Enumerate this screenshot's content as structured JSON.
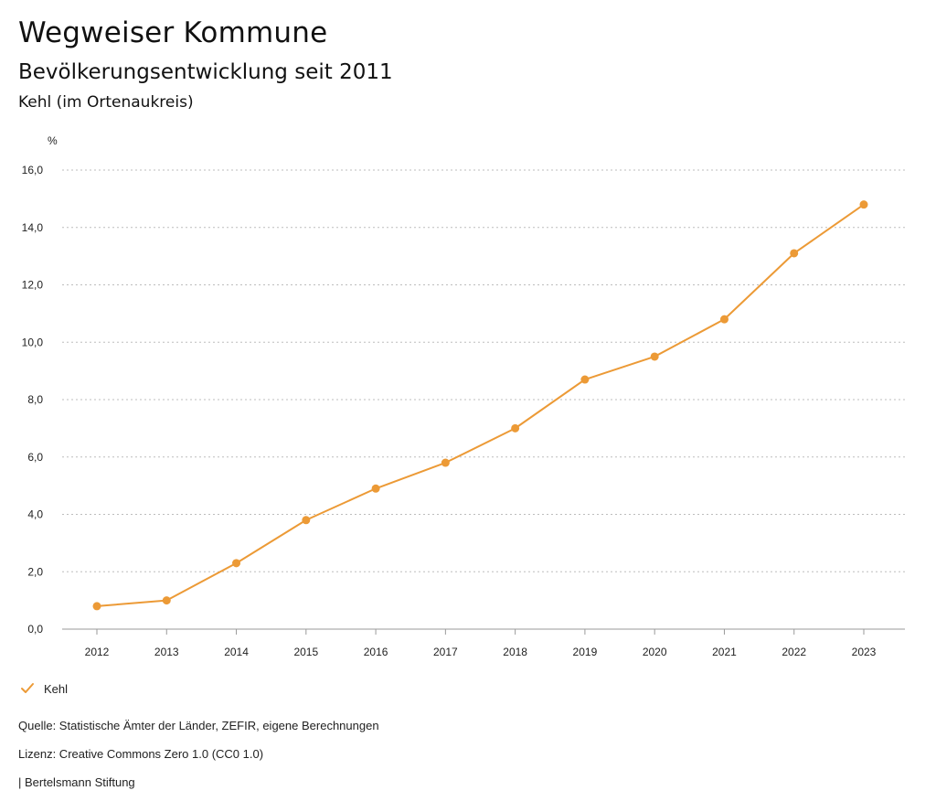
{
  "header": {
    "title": "Wegweiser Kommune",
    "subtitle": "Bevölkerungsentwicklung seit 2011",
    "region": "Kehl (im Ortenaukreis)"
  },
  "colors": {
    "series": "#ec9a36",
    "grid": "#bdbdbd",
    "axis": "#9a9a9a"
  },
  "chart_data": {
    "type": "line",
    "title": "Bevölkerungsentwicklung seit 2011",
    "ylabel": "%",
    "xlabel": "",
    "ylim": [
      0,
      16
    ],
    "yticks": [
      0,
      2,
      4,
      6,
      8,
      10,
      12,
      14,
      16
    ],
    "ytick_labels": [
      "0,0",
      "2,0",
      "4,0",
      "6,0",
      "8,0",
      "10,0",
      "12,0",
      "14,0",
      "16,0"
    ],
    "categories": [
      "2012",
      "2013",
      "2014",
      "2015",
      "2016",
      "2017",
      "2018",
      "2019",
      "2020",
      "2021",
      "2022",
      "2023"
    ],
    "series": [
      {
        "name": "Kehl",
        "values": [
          0.8,
          1.0,
          2.3,
          3.8,
          4.9,
          5.8,
          7.0,
          8.7,
          9.5,
          10.8,
          13.1,
          14.8
        ]
      }
    ],
    "grid": true,
    "legend": "bottom-left"
  },
  "legend": {
    "label": "Kehl"
  },
  "footer": {
    "source": "Quelle: Statistische Ämter der Länder, ZEFIR, eigene Berechnungen",
    "license": "Lizenz: Creative Commons Zero 1.0 (CC0 1.0)",
    "brand": "| Bertelsmann Stiftung"
  }
}
